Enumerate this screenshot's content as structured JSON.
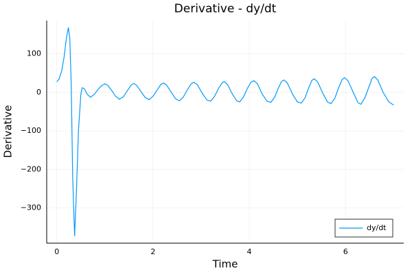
{
  "chart_data": {
    "type": "line",
    "title": "Derivative - dy/dt",
    "x_label": "Time",
    "y_label": "Derivative",
    "xlim": [
      -0.21,
      7.21
    ],
    "ylim": [
      -391,
      186
    ],
    "xticks": [
      0,
      2,
      4,
      6
    ],
    "yticks": [
      {
        "value": -300,
        "label": "−300"
      },
      {
        "value": -200,
        "label": "−200"
      },
      {
        "value": -100,
        "label": "−100"
      },
      0,
      100
    ],
    "grid": true,
    "legend": "bottom-right",
    "series": [
      {
        "name": "dy/dt",
        "color": "#009af9",
        "x": [
          0,
          0.05,
          0.1,
          0.15,
          0.2,
          0.24,
          0.27,
          0.3,
          0.33,
          0.37,
          0.41,
          0.45,
          0.5,
          0.53,
          0.58,
          0.63,
          0.7,
          0.78,
          0.86,
          0.94,
          1.0,
          1.06,
          1.14,
          1.22,
          1.3,
          1.38,
          1.46,
          1.54,
          1.6,
          1.66,
          1.76,
          1.84,
          1.92,
          2.0,
          2.08,
          2.16,
          2.22,
          2.28,
          2.38,
          2.47,
          2.55,
          2.63,
          2.72,
          2.8,
          2.85,
          2.92,
          3.02,
          3.12,
          3.2,
          3.28,
          3.36,
          3.44,
          3.48,
          3.55,
          3.65,
          3.74,
          3.8,
          3.88,
          3.96,
          4.04,
          4.1,
          4.17,
          4.27,
          4.37,
          4.45,
          4.53,
          4.6,
          4.67,
          4.72,
          4.79,
          4.9,
          5.0,
          5.08,
          5.16,
          5.23,
          5.3,
          5.35,
          5.42,
          5.53,
          5.63,
          5.7,
          5.78,
          5.85,
          5.93,
          5.98,
          6.05,
          6.16,
          6.26,
          6.32,
          6.4,
          6.48,
          6.55,
          6.6,
          6.67,
          6.78,
          6.9,
          7.0
        ],
        "values": [
          27,
          35,
          55,
          90,
          140,
          168,
          140,
          20,
          -220,
          -373,
          -250,
          -100,
          -5,
          12,
          8,
          -5,
          -13,
          -5,
          8,
          18,
          22,
          18,
          5,
          -10,
          -18,
          -12,
          3,
          18,
          23,
          18,
          0,
          -14,
          -19,
          -10,
          5,
          20,
          24,
          19,
          0,
          -17,
          -22,
          -12,
          8,
          23,
          26,
          20,
          -2,
          -20,
          -23,
          -10,
          10,
          25,
          28,
          20,
          -5,
          -22,
          -25,
          -12,
          10,
          27,
          30,
          22,
          -5,
          -23,
          -26,
          -12,
          10,
          28,
          32,
          24,
          -5,
          -25,
          -28,
          -14,
          10,
          31,
          35,
          27,
          -3,
          -26,
          -29,
          -15,
          10,
          33,
          38,
          30,
          0,
          -27,
          -31,
          -15,
          12,
          36,
          41,
          32,
          0,
          -25,
          -33
        ]
      }
    ]
  }
}
